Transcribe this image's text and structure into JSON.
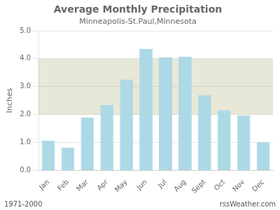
{
  "chart_data": {
    "type": "bar",
    "title": "Average Monthly Precipitation",
    "subtitle": "Minneapolis-St.Paul,Minnesota",
    "categories": [
      "Jan",
      "Feb",
      "Mar",
      "Apr",
      "May",
      "Jun",
      "Jul",
      "Aug",
      "Sept",
      "Oct",
      "Nov",
      "Dec"
    ],
    "values": [
      1.07,
      0.81,
      1.9,
      2.34,
      3.26,
      4.35,
      4.05,
      4.07,
      2.7,
      2.16,
      1.97,
      1.02
    ],
    "color": "#add8e6",
    "ylabel": "Inches",
    "ylim": [
      0.0,
      5.0
    ],
    "yticks": [
      {
        "value": 0,
        "label": "0.0"
      },
      {
        "value": 1,
        "label": "1.0"
      },
      {
        "value": 2,
        "label": "2.0"
      },
      {
        "value": 3,
        "label": "3.0"
      },
      {
        "value": 4,
        "label": "4.0"
      },
      {
        "value": 5,
        "label": "5.0"
      }
    ],
    "band": {
      "from": 2.0,
      "to": 4.0,
      "color": "#e8e8d8"
    },
    "annotations": [
      "1971-2000",
      "rssWeather.com"
    ],
    "grid": true
  }
}
